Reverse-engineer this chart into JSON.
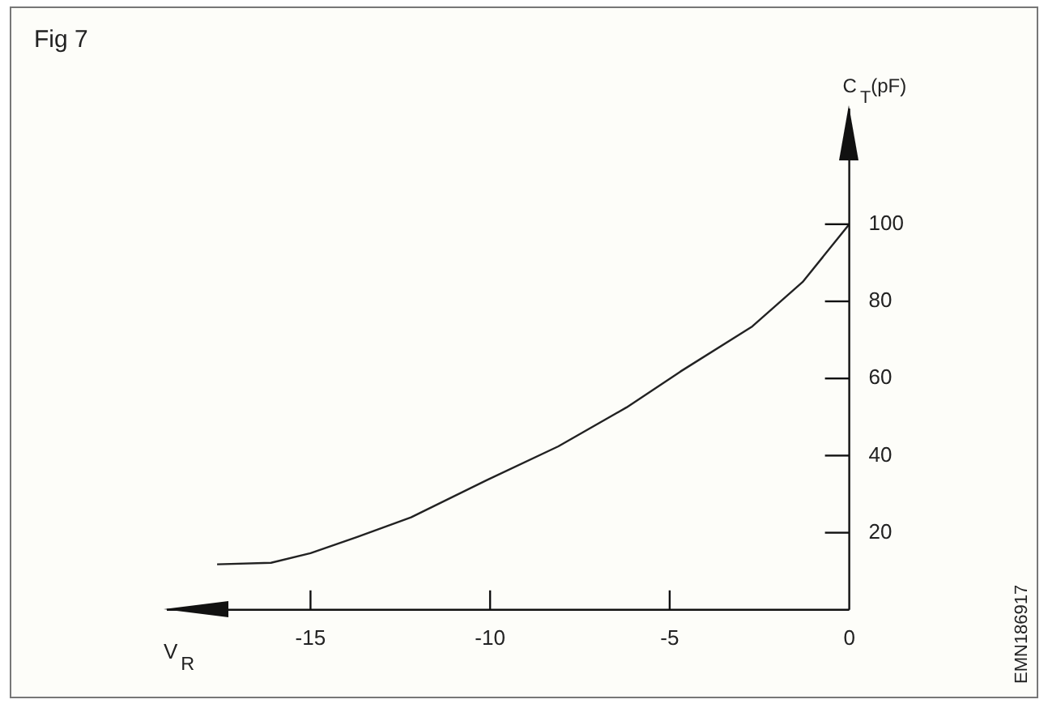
{
  "chart_data": {
    "type": "line",
    "title": "Fig 7",
    "xlabel": "V$_{R}$",
    "ylabel": "C$_{T}$(pF)",
    "x": [
      -17.6,
      -16.1,
      -15,
      -13.7,
      -12.2,
      -10.1,
      -8.1,
      -6.2,
      -4.7,
      -2.7,
      -1.3,
      0
    ],
    "series": [
      {
        "color": "#222222",
        "values": [
          11.8,
          12.2,
          14.7,
          18.9,
          24,
          33.6,
          42.4,
          52.5,
          61.8,
          73.5,
          85,
          100
        ]
      }
    ],
    "xlim": [
      -19,
      0
    ],
    "xticks": [
      -15,
      -10,
      -5,
      0
    ],
    "ylim": [
      0,
      130
    ],
    "yticks": [
      20,
      40,
      60,
      80,
      100
    ],
    "grid": false,
    "legend": false,
    "marker": "none",
    "line_style": "solid",
    "annotations": [
      "EMN186917"
    ]
  }
}
